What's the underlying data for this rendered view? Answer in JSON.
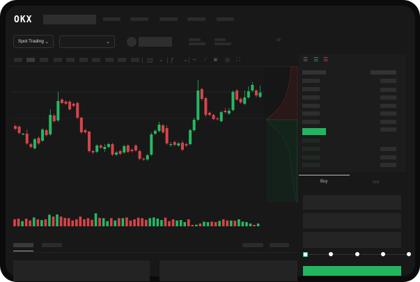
{
  "brand": {
    "logo_text": "OKX"
  },
  "header": {
    "nav_placeholders": 5
  },
  "market_bar": {
    "product_selector_label": "Spot Trading",
    "pair_selector_value": "",
    "chevron_icon": "chevron-down-icon"
  },
  "toolbar": {
    "icons": [
      "candle-type-icon",
      "chevron-down-icon",
      "indicator-icon",
      "chevron-down-icon",
      "line-icon",
      "ruler-icon",
      "camera-icon",
      "settings-icon",
      "fullscreen-icon"
    ]
  },
  "order_book": {
    "view_icons": [
      "book-both-icon",
      "book-bids-icon",
      "book-asks-icon"
    ]
  },
  "trade_panel": {
    "tabs": [
      {
        "label": "Buy",
        "active": true
      },
      {
        "label": "Sell",
        "active": false
      }
    ],
    "slider_percent": 0,
    "slider_stops": [
      0,
      25,
      50,
      75,
      100
    ]
  },
  "colors": {
    "up": "#25b864",
    "down": "#d9434b",
    "background": "#181818",
    "panel": "#1e1e1e",
    "accent": "#1fbf5f"
  },
  "chart_data": {
    "type": "candlestick",
    "ohlc": [
      [
        119,
        121,
        113,
        115
      ],
      [
        118,
        120,
        107,
        109
      ],
      [
        107,
        109,
        106,
        108
      ],
      [
        108,
        114,
        92,
        94
      ],
      [
        93,
        95,
        87,
        89
      ],
      [
        87,
        102,
        85,
        100
      ],
      [
        102,
        104,
        92,
        94
      ],
      [
        98,
        116,
        96,
        114
      ],
      [
        113,
        115,
        104,
        106
      ],
      [
        107,
        143,
        105,
        135
      ],
      [
        134,
        137,
        124,
        126
      ],
      [
        127,
        168,
        125,
        155
      ],
      [
        157,
        159,
        150,
        152
      ],
      [
        154,
        156,
        149,
        151
      ],
      [
        154,
        156,
        141,
        143
      ],
      [
        151,
        153,
        146,
        148
      ],
      [
        152,
        154,
        129,
        131
      ],
      [
        131,
        132,
        108,
        110
      ],
      [
        113,
        115,
        108,
        110
      ],
      [
        111,
        112,
        81,
        83
      ],
      [
        83,
        85,
        79,
        81
      ],
      [
        82,
        93,
        80,
        91
      ],
      [
        91,
        93,
        86,
        88
      ],
      [
        86,
        93,
        82,
        89
      ],
      [
        89,
        95,
        87,
        93
      ],
      [
        93,
        95,
        76,
        78
      ],
      [
        78,
        83,
        76,
        81
      ],
      [
        83,
        85,
        77,
        79
      ],
      [
        81,
        92,
        79,
        90
      ],
      [
        91,
        93,
        80,
        82
      ],
      [
        85,
        87,
        81,
        83
      ],
      [
        91,
        93,
        82,
        84
      ],
      [
        83,
        85,
        70,
        72
      ],
      [
        72,
        74,
        69,
        71
      ],
      [
        71,
        79,
        69,
        77
      ],
      [
        78,
        110,
        76,
        107
      ],
      [
        108,
        114,
        106,
        112
      ],
      [
        112,
        125,
        110,
        121
      ],
      [
        120,
        122,
        108,
        110
      ],
      [
        116,
        120,
        92,
        94
      ],
      [
        92,
        96,
        89,
        93
      ],
      [
        96,
        98,
        90,
        92
      ],
      [
        91,
        96,
        89,
        94
      ],
      [
        95,
        98,
        83,
        85
      ],
      [
        93,
        95,
        89,
        91
      ],
      [
        93,
        115,
        91,
        113
      ],
      [
        113,
        131,
        111,
        128
      ],
      [
        128,
        185,
        126,
        170
      ],
      [
        172,
        174,
        155,
        158
      ],
      [
        159,
        161,
        132,
        135
      ],
      [
        138,
        140,
        133,
        135
      ],
      [
        135,
        137,
        127,
        129
      ],
      [
        130,
        132,
        127,
        129
      ],
      [
        126,
        141,
        124,
        139
      ],
      [
        141,
        145,
        137,
        139
      ],
      [
        137,
        145,
        135,
        141
      ],
      [
        142,
        170,
        140,
        168
      ],
      [
        170,
        172,
        155,
        157
      ],
      [
        158,
        160,
        151,
        153
      ],
      [
        151,
        170,
        149,
        160
      ],
      [
        160,
        176,
        158,
        169
      ],
      [
        170,
        182,
        168,
        178
      ],
      [
        170,
        172,
        160,
        163
      ],
      [
        161,
        177,
        159,
        167
      ]
    ],
    "volume": [
      {
        "v": 30,
        "dir": "down"
      },
      {
        "v": 33,
        "dir": "down"
      },
      {
        "v": 22,
        "dir": "up"
      },
      {
        "v": 33,
        "dir": "down"
      },
      {
        "v": 25,
        "dir": "down"
      },
      {
        "v": 38,
        "dir": "up"
      },
      {
        "v": 30,
        "dir": "down"
      },
      {
        "v": 27,
        "dir": "up"
      },
      {
        "v": 30,
        "dir": "down"
      },
      {
        "v": 50,
        "dir": "up"
      },
      {
        "v": 42,
        "dir": "down"
      },
      {
        "v": 51,
        "dir": "up"
      },
      {
        "v": 42,
        "dir": "down"
      },
      {
        "v": 36,
        "dir": "down"
      },
      {
        "v": 35,
        "dir": "down"
      },
      {
        "v": 25,
        "dir": "down"
      },
      {
        "v": 30,
        "dir": "down"
      },
      {
        "v": 42,
        "dir": "down"
      },
      {
        "v": 30,
        "dir": "down"
      },
      {
        "v": 35,
        "dir": "down"
      },
      {
        "v": 28,
        "dir": "down"
      },
      {
        "v": 56,
        "dir": "up"
      },
      {
        "v": 36,
        "dir": "down"
      },
      {
        "v": 35,
        "dir": "up"
      },
      {
        "v": 22,
        "dir": "up"
      },
      {
        "v": 35,
        "dir": "down"
      },
      {
        "v": 25,
        "dir": "up"
      },
      {
        "v": 35,
        "dir": "down"
      },
      {
        "v": 35,
        "dir": "up"
      },
      {
        "v": 38,
        "dir": "down"
      },
      {
        "v": 25,
        "dir": "down"
      },
      {
        "v": 30,
        "dir": "down"
      },
      {
        "v": 37,
        "dir": "down"
      },
      {
        "v": 35,
        "dir": "down"
      },
      {
        "v": 28,
        "dir": "down"
      },
      {
        "v": 35,
        "dir": "up"
      },
      {
        "v": 38,
        "dir": "up"
      },
      {
        "v": 33,
        "dir": "up"
      },
      {
        "v": 27,
        "dir": "up"
      },
      {
        "v": 37,
        "dir": "down"
      },
      {
        "v": 22,
        "dir": "down"
      },
      {
        "v": 30,
        "dir": "down"
      },
      {
        "v": 25,
        "dir": "up"
      },
      {
        "v": 27,
        "dir": "up"
      },
      {
        "v": 18,
        "dir": "up"
      },
      {
        "v": 30,
        "dir": "down"
      },
      {
        "v": 6,
        "dir": "down"
      },
      {
        "v": 7,
        "dir": "up"
      },
      {
        "v": 12,
        "dir": "down"
      },
      {
        "v": 20,
        "dir": "up"
      },
      {
        "v": 18,
        "dir": "up"
      },
      {
        "v": 20,
        "dir": "down"
      },
      {
        "v": 18,
        "dir": "down"
      },
      {
        "v": 23,
        "dir": "up"
      },
      {
        "v": 30,
        "dir": "down"
      },
      {
        "v": 25,
        "dir": "down"
      },
      {
        "v": 25,
        "dir": "up"
      },
      {
        "v": 24,
        "dir": "down"
      },
      {
        "v": 30,
        "dir": "up"
      },
      {
        "v": 20,
        "dir": "up"
      },
      {
        "v": 18,
        "dir": "up"
      },
      {
        "v": 12,
        "dir": "up"
      },
      {
        "v": 6,
        "dir": "down"
      },
      {
        "v": 12,
        "dir": "up"
      }
    ],
    "grid": true,
    "axes_labels_visible": false
  }
}
